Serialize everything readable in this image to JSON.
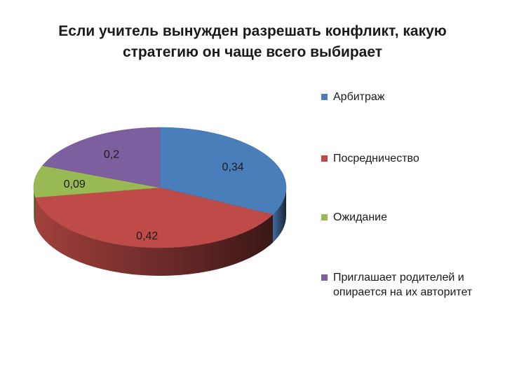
{
  "chart_data": {
    "type": "pie",
    "title_lines": [
      "Если учитель вынужден разрешать конфликт, какую",
      "стратегию он чаще всего выбирает"
    ],
    "categories": [
      "Арбитраж",
      "Посредничество",
      "Ожидание",
      "Приглашает родителей и опирается на их авторитет"
    ],
    "values": [
      0.34,
      0.42,
      0.09,
      0.2
    ],
    "data_labels": [
      "0,34",
      "0,42",
      "0,09",
      "0,2"
    ],
    "colors": [
      "#4a7ebb",
      "#be4b48",
      "#98b954",
      "#7d5fa0"
    ],
    "style": "3d",
    "legend": "right"
  }
}
